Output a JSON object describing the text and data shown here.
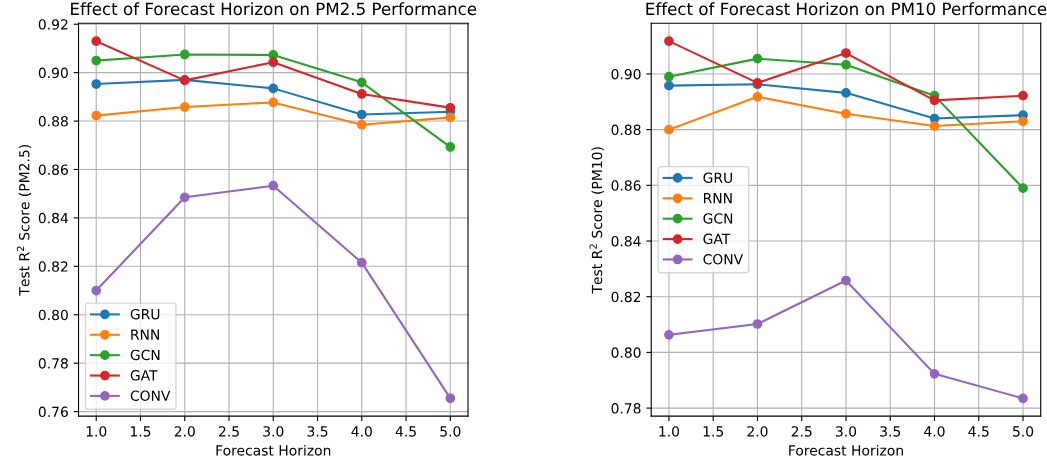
{
  "chart_data": [
    {
      "type": "line",
      "title": "Effect of Forecast Horizon on PM2.5 Performance",
      "xlabel": "Forecast Horizon",
      "ylabel": "Test R$^{2}$ Score (PM2.5)",
      "x": [
        1,
        2,
        3,
        4,
        5
      ],
      "series": [
        {
          "name": "GRU",
          "color": "#1f77b4",
          "values": [
            0.8953,
            0.897,
            0.8935,
            0.8827,
            0.8838
          ]
        },
        {
          "name": "RNN",
          "color": "#ff7f0e",
          "values": [
            0.8823,
            0.8858,
            0.8877,
            0.8785,
            0.8815
          ]
        },
        {
          "name": "GCN",
          "color": "#2ca02c",
          "values": [
            0.905,
            0.9075,
            0.9073,
            0.896,
            0.8693
          ]
        },
        {
          "name": "GAT",
          "color": "#d62728",
          "values": [
            0.913,
            0.8968,
            0.9043,
            0.8912,
            0.8855
          ]
        },
        {
          "name": "CONV",
          "color": "#9467bd",
          "values": [
            0.81,
            0.8485,
            0.8533,
            0.8215,
            0.7655
          ]
        }
      ],
      "xlim": [
        0.8,
        5.2
      ],
      "xticks": [
        {
          "value": 1,
          "label": "1.0"
        },
        {
          "value": 1.5,
          "label": "1.5"
        },
        {
          "value": 2,
          "label": "2.0"
        },
        {
          "value": 2.5,
          "label": "2.5"
        },
        {
          "value": 3,
          "label": "3.0"
        },
        {
          "value": 3.5,
          "label": "3.5"
        },
        {
          "value": 4,
          "label": "4.0"
        },
        {
          "value": 4.5,
          "label": "4.5"
        },
        {
          "value": 5,
          "label": "5.0"
        }
      ],
      "ylim": [
        0.7581,
        0.9204
      ],
      "yticks": [
        {
          "value": 0.76,
          "label": "0.76"
        },
        {
          "value": 0.78,
          "label": "0.78"
        },
        {
          "value": 0.8,
          "label": "0.80"
        },
        {
          "value": 0.82,
          "label": "0.82"
        },
        {
          "value": 0.84,
          "label": "0.84"
        },
        {
          "value": 0.86,
          "label": "0.86"
        },
        {
          "value": 0.88,
          "label": "0.88"
        },
        {
          "value": 0.9,
          "label": "0.90"
        },
        {
          "value": 0.92,
          "label": "0.92"
        }
      ],
      "grid": true,
      "legend": "bottom left",
      "marker": "circle",
      "line_style": "solid"
    },
    {
      "type": "line",
      "title": "Effect of Forecast Horizon on PM10 Performance",
      "xlabel": "Forecast Horizon",
      "ylabel": "Test R$^{2}$ Score (PM10)",
      "x": [
        1,
        2,
        3,
        4,
        5
      ],
      "series": [
        {
          "name": "GRU",
          "color": "#1f77b4",
          "values": [
            0.8958,
            0.8963,
            0.8932,
            0.884,
            0.8852
          ]
        },
        {
          "name": "RNN",
          "color": "#ff7f0e",
          "values": [
            0.88,
            0.8918,
            0.8857,
            0.8813,
            0.883
          ]
        },
        {
          "name": "GCN",
          "color": "#2ca02c",
          "values": [
            0.899,
            0.9055,
            0.9033,
            0.8922,
            0.859
          ]
        },
        {
          "name": "GAT",
          "color": "#d62728",
          "values": [
            0.9118,
            0.8968,
            0.9075,
            0.8905,
            0.8922
          ]
        },
        {
          "name": "CONV",
          "color": "#9467bd",
          "values": [
            0.8063,
            0.8102,
            0.8258,
            0.7923,
            0.7835
          ]
        }
      ],
      "xlim": [
        0.8,
        5.2
      ],
      "xticks": [
        {
          "value": 1,
          "label": "1.0"
        },
        {
          "value": 1.5,
          "label": "1.5"
        },
        {
          "value": 2,
          "label": "2.0"
        },
        {
          "value": 2.5,
          "label": "2.5"
        },
        {
          "value": 3,
          "label": "3.0"
        },
        {
          "value": 3.5,
          "label": "3.5"
        },
        {
          "value": 4,
          "label": "4.0"
        },
        {
          "value": 4.5,
          "label": "4.5"
        },
        {
          "value": 5,
          "label": "5.0"
        }
      ],
      "ylim": [
        0.7771,
        0.9182
      ],
      "yticks": [
        {
          "value": 0.78,
          "label": "0.78"
        },
        {
          "value": 0.8,
          "label": "0.80"
        },
        {
          "value": 0.82,
          "label": "0.82"
        },
        {
          "value": 0.84,
          "label": "0.84"
        },
        {
          "value": 0.86,
          "label": "0.86"
        },
        {
          "value": 0.88,
          "label": "0.88"
        },
        {
          "value": 0.9,
          "label": "0.90"
        }
      ],
      "grid": true,
      "legend": "center left",
      "marker": "circle",
      "line_style": "solid"
    }
  ]
}
